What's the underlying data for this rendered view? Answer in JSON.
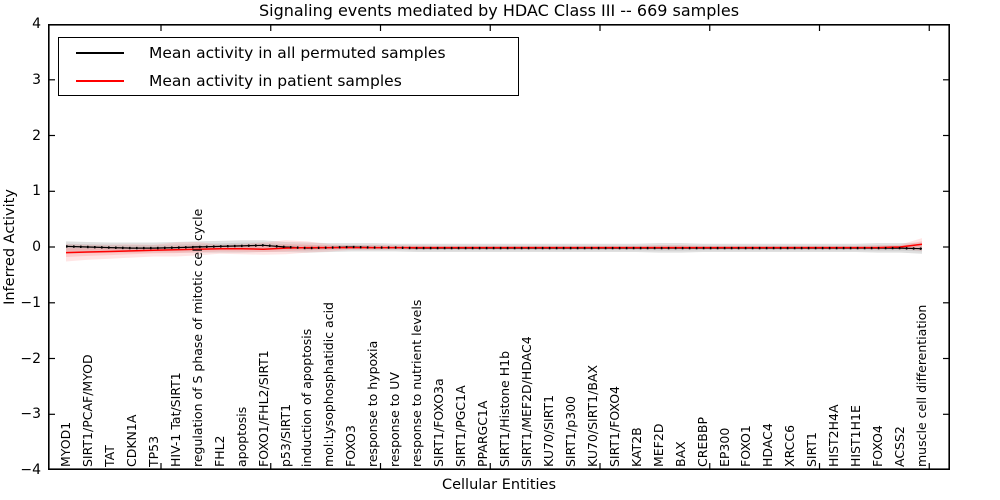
{
  "title": "Signaling events mediated by HDAC Class III -- 669 samples",
  "axes": {
    "xlabel": "Cellular Entities",
    "ylabel": "Inferred Activity"
  },
  "legend": {
    "position": "upper left",
    "items": [
      {
        "label": "Mean activity in all permuted samples",
        "color": "#000000"
      },
      {
        "label": "Mean activity in patient samples",
        "color": "#ff0000"
      }
    ]
  },
  "chart_data": {
    "type": "line",
    "title": "Signaling events mediated by HDAC Class III -- 669 samples",
    "xlabel": "Cellular Entities",
    "ylabel": "Inferred Activity",
    "ylim": [
      -4,
      4
    ],
    "yticks": [
      4,
      3,
      2,
      1,
      0,
      -1,
      -2,
      -3,
      -4
    ],
    "grid": false,
    "legend_position": "upper left",
    "categories": [
      "MYOD1",
      "SIRT1/PCAF/MYOD",
      "TAT",
      "CDKN1A",
      "TP53",
      "HIV-1 Tat/SIRT1",
      "regulation of S phase of mitotic cell cycle",
      "FHL2",
      "apoptosis",
      "FOXO1/FHL2/SIRT1",
      "p53/SIRT1",
      "induction of apoptosis",
      "mol:Lysophosphatidic acid",
      "FOXO3",
      "response to hypoxia",
      "response to UV",
      "response to nutrient levels",
      "SIRT1/FOXO3a",
      "SIRT1/PGC1A",
      "PPARGC1A",
      "SIRT1/Histone H1b",
      "SIRT1/MEF2D/HDAC4",
      "KU70/SIRT1",
      "SIRT1/p300",
      "KU70/SIRT1/BAX",
      "SIRT1/FOXO4",
      "KAT2B",
      "MEF2D",
      "BAX",
      "CREBBP",
      "EP300",
      "FOXO1",
      "HDAC4",
      "XRCC6",
      "SIRT1",
      "HIST2H4A",
      "HIST1H1E",
      "FOXO4",
      "ACSS2",
      "muscle cell differentiation"
    ],
    "series": [
      {
        "name": "Mean activity in all permuted samples",
        "color": "#000000",
        "band_color": "#999999",
        "values": [
          0.01,
          0.0,
          -0.01,
          -0.02,
          -0.02,
          -0.01,
          0.0,
          0.01,
          0.02,
          0.03,
          0.0,
          -0.02,
          -0.01,
          0.0,
          -0.01,
          -0.01,
          -0.02,
          -0.02,
          -0.02,
          -0.02,
          -0.02,
          -0.02,
          -0.02,
          -0.02,
          -0.02,
          -0.02,
          -0.02,
          -0.02,
          -0.02,
          -0.02,
          -0.02,
          -0.02,
          -0.02,
          -0.02,
          -0.02,
          -0.02,
          -0.02,
          -0.02,
          -0.02,
          -0.03
        ],
        "band_upper": [
          0.1,
          0.09,
          0.08,
          0.08,
          0.08,
          0.09,
          0.1,
          0.11,
          0.12,
          0.12,
          0.09,
          0.08,
          0.07,
          0.07,
          0.07,
          0.06,
          0.06,
          0.06,
          0.06,
          0.06,
          0.06,
          0.06,
          0.06,
          0.06,
          0.06,
          0.06,
          0.06,
          0.07,
          0.07,
          0.06,
          0.06,
          0.06,
          0.06,
          0.06,
          0.06,
          0.06,
          0.06,
          0.07,
          0.07,
          0.08
        ],
        "band_lower": [
          -0.12,
          -0.11,
          -0.1,
          -0.1,
          -0.1,
          -0.1,
          -0.1,
          -0.1,
          -0.1,
          -0.09,
          -0.09,
          -0.1,
          -0.09,
          -0.08,
          -0.08,
          -0.08,
          -0.09,
          -0.09,
          -0.09,
          -0.09,
          -0.09,
          -0.09,
          -0.09,
          -0.09,
          -0.09,
          -0.09,
          -0.09,
          -0.1,
          -0.1,
          -0.09,
          -0.09,
          -0.09,
          -0.09,
          -0.09,
          -0.09,
          -0.09,
          -0.09,
          -0.1,
          -0.1,
          -0.12
        ]
      },
      {
        "name": "Mean activity in patient samples",
        "color": "#ff0000",
        "band_color": "#ff9999",
        "values": [
          -0.1,
          -0.09,
          -0.08,
          -0.07,
          -0.06,
          -0.05,
          -0.04,
          -0.03,
          -0.03,
          -0.04,
          -0.02,
          -0.01,
          -0.01,
          -0.01,
          -0.01,
          -0.01,
          -0.01,
          -0.01,
          -0.01,
          -0.01,
          -0.01,
          -0.01,
          -0.01,
          -0.01,
          -0.01,
          -0.01,
          -0.01,
          -0.01,
          -0.01,
          -0.01,
          -0.01,
          -0.01,
          -0.01,
          -0.01,
          -0.01,
          -0.01,
          -0.01,
          -0.01,
          0.0,
          0.05
        ],
        "band_upper": [
          0.05,
          0.04,
          0.04,
          0.05,
          0.04,
          0.08,
          0.09,
          0.04,
          0.05,
          0.08,
          0.12,
          0.1,
          0.05,
          0.03,
          0.04,
          0.03,
          0.03,
          0.02,
          0.02,
          0.02,
          0.02,
          0.02,
          0.02,
          0.02,
          0.02,
          0.02,
          0.02,
          0.03,
          0.03,
          0.02,
          0.02,
          0.02,
          0.02,
          0.02,
          0.02,
          0.02,
          0.02,
          0.03,
          0.04,
          0.16
        ],
        "band_lower": [
          -0.26,
          -0.23,
          -0.21,
          -0.19,
          -0.17,
          -0.17,
          -0.15,
          -0.12,
          -0.13,
          -0.14,
          -0.13,
          -0.1,
          -0.08,
          -0.05,
          -0.05,
          -0.04,
          -0.04,
          -0.03,
          -0.03,
          -0.03,
          -0.03,
          -0.03,
          -0.03,
          -0.03,
          -0.03,
          -0.03,
          -0.03,
          -0.03,
          -0.03,
          -0.03,
          -0.03,
          -0.03,
          -0.03,
          -0.03,
          -0.03,
          -0.03,
          -0.03,
          -0.04,
          -0.04,
          -0.07
        ]
      }
    ]
  }
}
